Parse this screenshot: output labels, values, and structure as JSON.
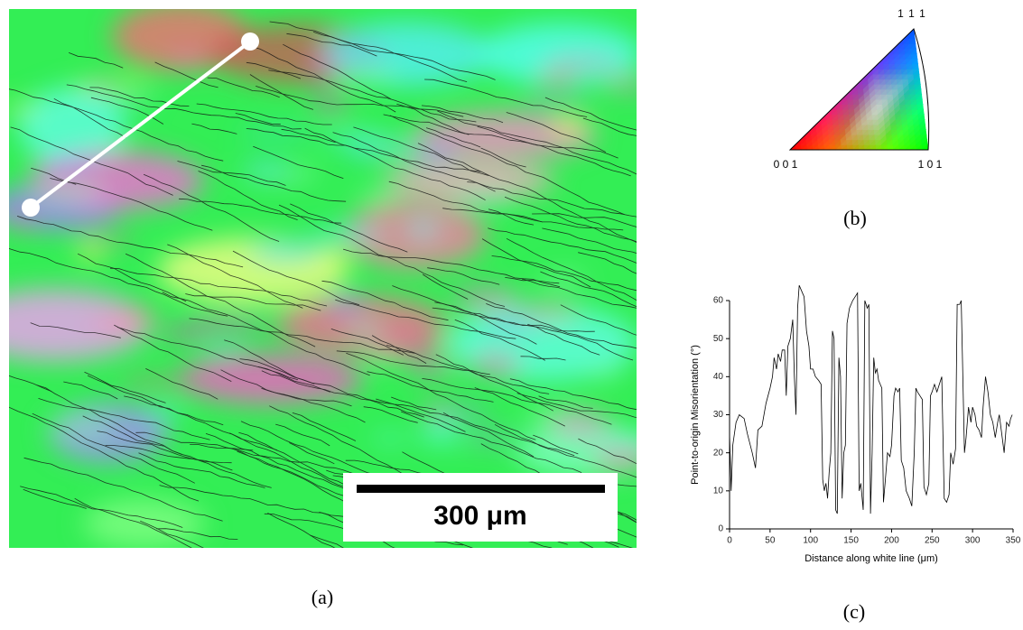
{
  "panel_a": {
    "label": "(a)",
    "scale_bar": "300 μm"
  },
  "panel_b": {
    "label": "(b)",
    "corners": [
      "1 1 1",
      "0 0 1",
      "1 0 1"
    ]
  },
  "panel_c": {
    "label": "(c)"
  },
  "chart_data": {
    "type": "line",
    "xlabel": "Distance along white line (μm)",
    "ylabel": "Point-to-origin Misorientation (°)",
    "color": "#000000",
    "xlim": [
      0,
      350
    ],
    "ylim": [
      0,
      60
    ],
    "xticks": [
      0,
      50,
      100,
      150,
      200,
      250,
      300,
      350
    ],
    "yticks": [
      0,
      10,
      20,
      30,
      40,
      50,
      60
    ],
    "x": [
      0,
      2,
      4,
      8,
      12,
      18,
      22,
      28,
      32,
      35,
      40,
      45,
      50,
      53,
      55,
      58,
      60,
      63,
      65,
      68,
      70,
      72,
      75,
      78,
      80,
      82,
      84,
      86,
      90,
      92,
      95,
      98,
      100,
      103,
      106,
      110,
      113,
      115,
      117,
      119,
      121,
      123,
      125,
      127,
      129,
      131,
      133,
      135,
      137,
      139,
      141,
      143,
      145,
      148,
      152,
      155,
      158,
      160,
      162,
      165,
      167,
      170,
      172,
      174,
      176,
      178,
      180,
      182,
      184,
      186,
      188,
      190,
      192,
      195,
      198,
      200,
      203,
      205,
      208,
      210,
      212,
      215,
      218,
      222,
      225,
      228,
      230,
      232,
      235,
      238,
      240,
      243,
      246,
      248,
      250,
      253,
      256,
      259,
      262,
      265,
      268,
      271,
      273,
      276,
      279,
      281,
      284,
      286,
      288,
      290,
      292,
      295,
      298,
      300,
      303,
      305,
      308,
      311,
      313,
      316,
      319,
      322,
      325,
      328,
      331,
      333,
      336,
      339,
      342,
      345,
      347,
      349
    ],
    "values": [
      25,
      10,
      22,
      28,
      30,
      29,
      25,
      20,
      16,
      26,
      27,
      33,
      37,
      40,
      45,
      42,
      46,
      44,
      47,
      47,
      35,
      48,
      50,
      55,
      40,
      30,
      58,
      64,
      62,
      61,
      52,
      48,
      42,
      42,
      40,
      39,
      38,
      13,
      10,
      12,
      8,
      15,
      20,
      52,
      50,
      5,
      4,
      45,
      40,
      8,
      20,
      22,
      54,
      58,
      60,
      61,
      62,
      10,
      12,
      5,
      60,
      58,
      59,
      4,
      20,
      45,
      41,
      42,
      39,
      38,
      37,
      7,
      12,
      20,
      19,
      22,
      35,
      37,
      36,
      37,
      18,
      16,
      10,
      8,
      6,
      20,
      37,
      36,
      35,
      34,
      11,
      9,
      12,
      35,
      36,
      38,
      36,
      38,
      40,
      8,
      7,
      9,
      20,
      17,
      21,
      59,
      59,
      60,
      40,
      20,
      24,
      32,
      28,
      32,
      30,
      27,
      26,
      24,
      32,
      40,
      36,
      30,
      28,
      24,
      28,
      30,
      25,
      20,
      28,
      27,
      29,
      30
    ]
  }
}
